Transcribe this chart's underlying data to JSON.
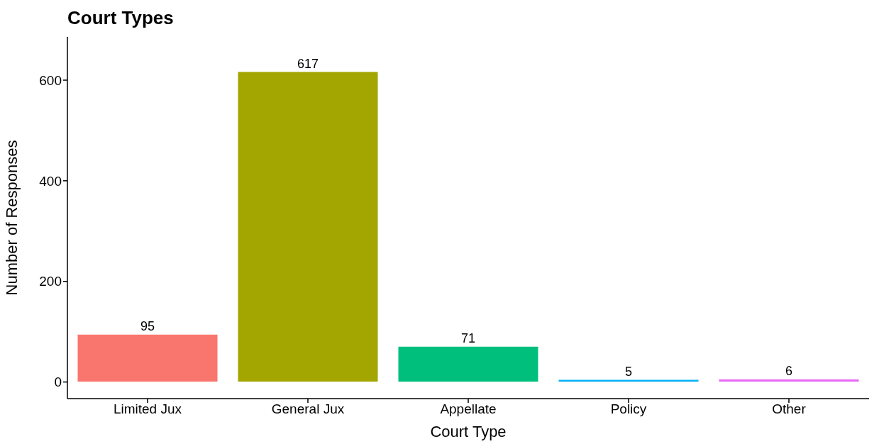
{
  "chart_data": {
    "type": "bar",
    "title": "Court Types",
    "xlabel": "Court Type",
    "ylabel": "Number of Responses",
    "categories": [
      "Limited Jux",
      "General Jux",
      "Appellate",
      "Policy",
      "Other"
    ],
    "values": [
      95,
      617,
      71,
      5,
      6
    ],
    "colors": [
      "#f8766d",
      "#a3a500",
      "#00bf7d",
      "#00b0f6",
      "#e76bf3"
    ],
    "ylim": [
      -33,
      686
    ],
    "yticks": [
      0,
      200,
      400,
      600
    ],
    "grid": false,
    "legend": false,
    "data_labels": true
  }
}
